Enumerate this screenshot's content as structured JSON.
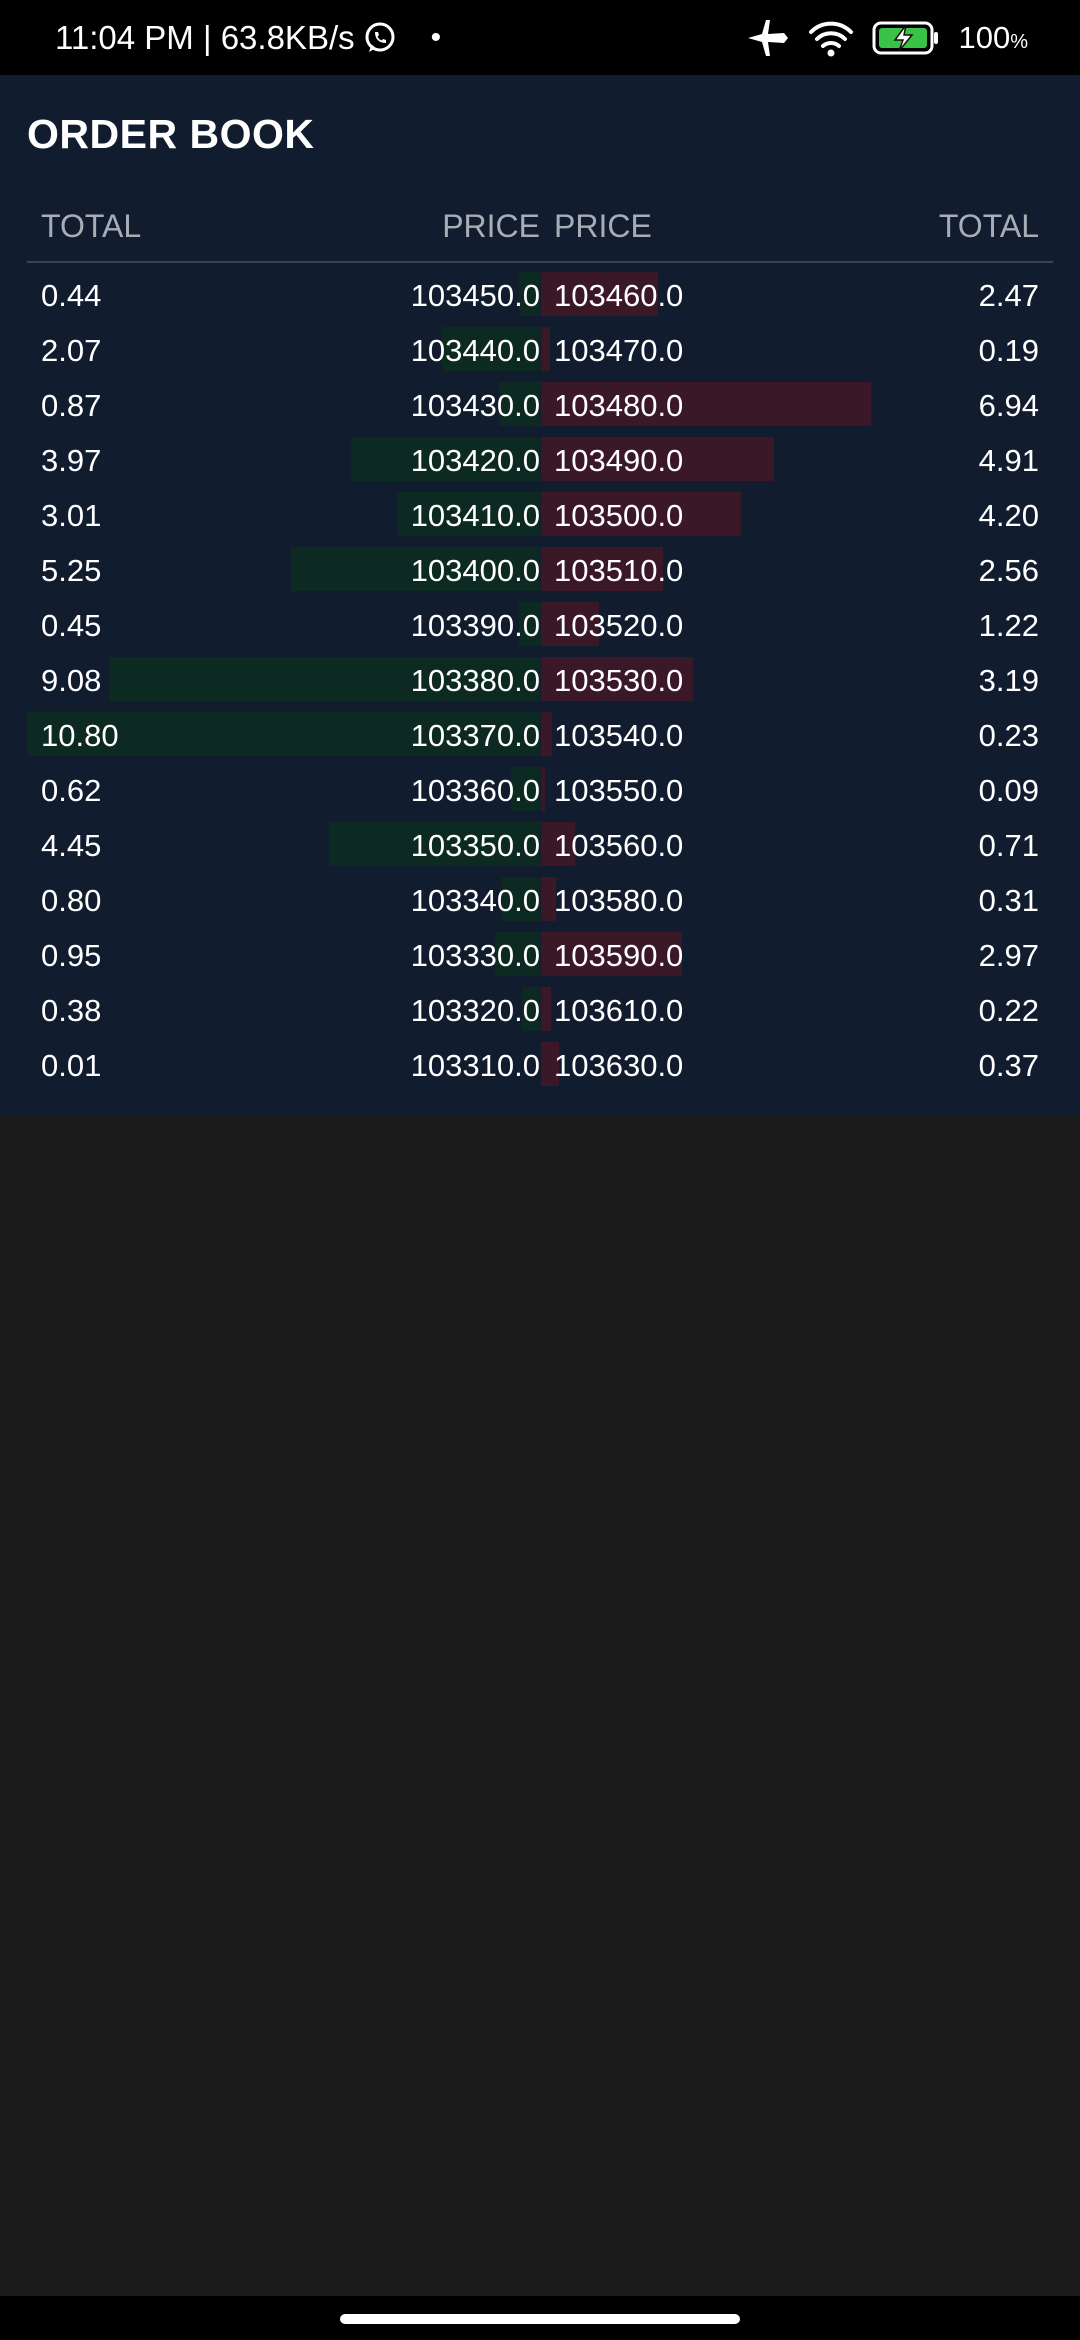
{
  "status_bar": {
    "time_speed": "11:04 PM | 63.8KB/s",
    "dot": "•",
    "battery_percent": "100",
    "battery_percent_sign": "%",
    "icons": [
      "whatsapp-icon",
      "airplane-mode-icon",
      "wifi-icon",
      "battery-charging-icon"
    ]
  },
  "order_book": {
    "title": "ORDER BOOK",
    "headers": {
      "bid_total": "TOTAL",
      "bid_price": "PRICE",
      "ask_price": "PRICE",
      "ask_total": "TOTAL"
    },
    "bids": [
      {
        "total": "0.44",
        "price": "103450.0"
      },
      {
        "total": "2.07",
        "price": "103440.0"
      },
      {
        "total": "0.87",
        "price": "103430.0"
      },
      {
        "total": "3.97",
        "price": "103420.0"
      },
      {
        "total": "3.01",
        "price": "103410.0"
      },
      {
        "total": "5.25",
        "price": "103400.0"
      },
      {
        "total": "0.45",
        "price": "103390.0"
      },
      {
        "total": "9.08",
        "price": "103380.0"
      },
      {
        "total": "10.80",
        "price": "103370.0"
      },
      {
        "total": "0.62",
        "price": "103360.0"
      },
      {
        "total": "4.45",
        "price": "103350.0"
      },
      {
        "total": "0.80",
        "price": "103340.0"
      },
      {
        "total": "0.95",
        "price": "103330.0"
      },
      {
        "total": "0.38",
        "price": "103320.0"
      },
      {
        "total": "0.01",
        "price": "103310.0"
      }
    ],
    "asks": [
      {
        "price": "103460.0",
        "total": "2.47"
      },
      {
        "price": "103470.0",
        "total": "0.19"
      },
      {
        "price": "103480.0",
        "total": "6.94"
      },
      {
        "price": "103490.0",
        "total": "4.91"
      },
      {
        "price": "103500.0",
        "total": "4.20"
      },
      {
        "price": "103510.0",
        "total": "2.56"
      },
      {
        "price": "103520.0",
        "total": "1.22"
      },
      {
        "price": "103530.0",
        "total": "3.19"
      },
      {
        "price": "103540.0",
        "total": "0.23"
      },
      {
        "price": "103550.0",
        "total": "0.09"
      },
      {
        "price": "103560.0",
        "total": "0.71"
      },
      {
        "price": "103580.0",
        "total": "0.31"
      },
      {
        "price": "103590.0",
        "total": "2.97"
      },
      {
        "price": "103610.0",
        "total": "0.22"
      },
      {
        "price": "103630.0",
        "total": "0.37"
      }
    ],
    "colors": {
      "bid_bar": "#0d2a22",
      "ask_bar": "#3a1828",
      "panel_bg": "#111c2e"
    }
  }
}
